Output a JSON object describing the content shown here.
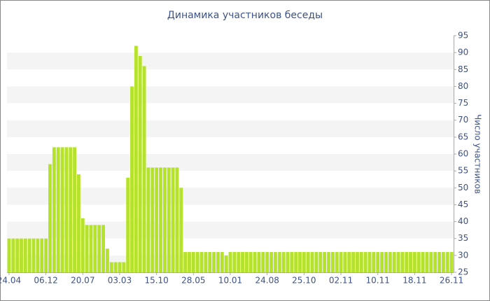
{
  "chart_data": {
    "type": "bar",
    "title": "Динамика участников беседы",
    "y_axis_label": "Число участников",
    "categories": [
      "24.04",
      null,
      null,
      null,
      null,
      null,
      null,
      null,
      null,
      "06.12",
      null,
      null,
      null,
      null,
      null,
      null,
      null,
      null,
      "20.07",
      null,
      null,
      null,
      null,
      null,
      null,
      null,
      null,
      "03.03",
      null,
      null,
      null,
      null,
      null,
      null,
      null,
      null,
      "15.10",
      null,
      null,
      null,
      null,
      null,
      null,
      null,
      null,
      "28.05",
      null,
      null,
      null,
      null,
      null,
      null,
      null,
      null,
      "10.01",
      null,
      null,
      null,
      null,
      null,
      null,
      null,
      null,
      "24.08",
      null,
      null,
      null,
      null,
      null,
      null,
      null,
      null,
      "25.10",
      null,
      null,
      null,
      null,
      null,
      null,
      null,
      null,
      "02.11",
      null,
      null,
      null,
      null,
      null,
      null,
      null,
      null,
      "10.11",
      null,
      null,
      null,
      null,
      null,
      null,
      null,
      null,
      "18.11",
      null,
      null,
      null,
      null,
      null,
      null,
      null,
      null,
      "26.11"
    ],
    "values": [
      35,
      35,
      35,
      35,
      35,
      35,
      35,
      35,
      35,
      35,
      57,
      62,
      62,
      62,
      62,
      62,
      62,
      54,
      41,
      39,
      39,
      39,
      39,
      39,
      32,
      28,
      28,
      28,
      28,
      53,
      80,
      92,
      89,
      86,
      56,
      56,
      56,
      56,
      56,
      56,
      56,
      56,
      50,
      31,
      31,
      31,
      31,
      31,
      31,
      31,
      31,
      31,
      31,
      30,
      31,
      31,
      31,
      31,
      31,
      31,
      31,
      31,
      31,
      31,
      31,
      31,
      31,
      31,
      31,
      31,
      31,
      31,
      31,
      31,
      31,
      31,
      31,
      31,
      31,
      31,
      31,
      31,
      31,
      31,
      31,
      31,
      31,
      31,
      31,
      31,
      31,
      31,
      31,
      31,
      31,
      31,
      31,
      31,
      31,
      31,
      31,
      31,
      31,
      31,
      31,
      31,
      31,
      31,
      31
    ],
    "color": "#b5e22b",
    "ylim": [
      25,
      95
    ],
    "yticks": [
      25,
      30,
      35,
      40,
      45,
      50,
      55,
      60,
      65,
      70,
      75,
      80,
      85,
      90,
      95
    ],
    "grid": true
  }
}
